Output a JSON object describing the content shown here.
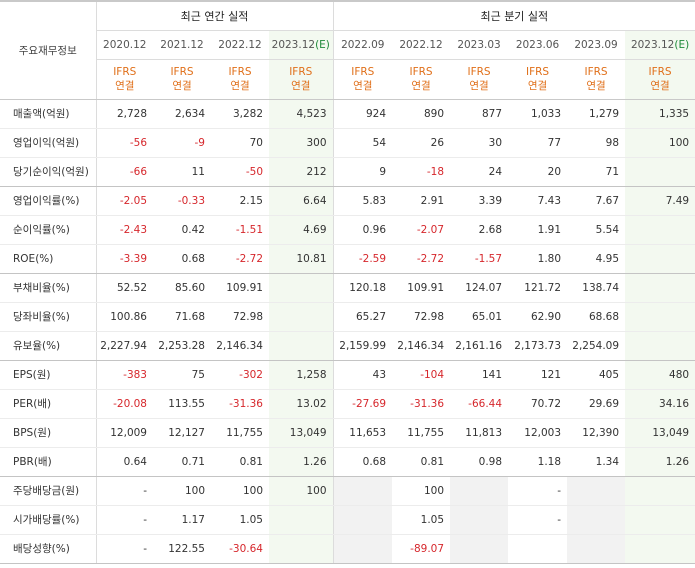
{
  "corner_label": "주요재무정보",
  "groups": [
    {
      "label": "최근 연간 실적"
    },
    {
      "label": "최근 분기 실적"
    }
  ],
  "columns": [
    {
      "period": "2020.12",
      "est": "",
      "std_top": "IFRS",
      "std_bot": "연결"
    },
    {
      "period": "2021.12",
      "est": "",
      "std_top": "IFRS",
      "std_bot": "연결"
    },
    {
      "period": "2022.12",
      "est": "",
      "std_top": "IFRS",
      "std_bot": "연결"
    },
    {
      "period": "2023.12",
      "est": "(E)",
      "std_top": "IFRS",
      "std_bot": "연결"
    },
    {
      "period": "2022.09",
      "est": "",
      "std_top": "IFRS",
      "std_bot": "연결"
    },
    {
      "period": "2022.12",
      "est": "",
      "std_top": "IFRS",
      "std_bot": "연결"
    },
    {
      "period": "2023.03",
      "est": "",
      "std_top": "IFRS",
      "std_bot": "연결"
    },
    {
      "period": "2023.06",
      "est": "",
      "std_top": "IFRS",
      "std_bot": "연결"
    },
    {
      "period": "2023.09",
      "est": "",
      "std_top": "IFRS",
      "std_bot": "연결"
    },
    {
      "period": "2023.12",
      "est": "(E)",
      "std_top": "IFRS",
      "std_bot": "연결"
    }
  ],
  "rows": [
    {
      "label": "매출액(억원)",
      "values": [
        "2,728",
        "2,634",
        "3,282",
        "4,523",
        "924",
        "890",
        "877",
        "1,033",
        "1,279",
        "1,335"
      ]
    },
    {
      "label": "영업이익(억원)",
      "values": [
        "-56",
        "-9",
        "70",
        "300",
        "54",
        "26",
        "30",
        "77",
        "98",
        "100"
      ]
    },
    {
      "label": "당기순이익(억원)",
      "values": [
        "-66",
        "11",
        "-50",
        "212",
        "9",
        "-18",
        "24",
        "20",
        "71",
        ""
      ]
    },
    {
      "label": "영업이익률(%)",
      "values": [
        "-2.05",
        "-0.33",
        "2.15",
        "6.64",
        "5.83",
        "2.91",
        "3.39",
        "7.43",
        "7.67",
        "7.49"
      ]
    },
    {
      "label": "순이익률(%)",
      "values": [
        "-2.43",
        "0.42",
        "-1.51",
        "4.69",
        "0.96",
        "-2.07",
        "2.68",
        "1.91",
        "5.54",
        ""
      ]
    },
    {
      "label": "ROE(%)",
      "values": [
        "-3.39",
        "0.68",
        "-2.72",
        "10.81",
        "-2.59",
        "-2.72",
        "-1.57",
        "1.80",
        "4.95",
        ""
      ]
    },
    {
      "label": "부채비율(%)",
      "values": [
        "52.52",
        "85.60",
        "109.91",
        "",
        "120.18",
        "109.91",
        "124.07",
        "121.72",
        "138.74",
        ""
      ]
    },
    {
      "label": "당좌비율(%)",
      "values": [
        "100.86",
        "71.68",
        "72.98",
        "",
        "65.27",
        "72.98",
        "65.01",
        "62.90",
        "68.68",
        ""
      ]
    },
    {
      "label": "유보율(%)",
      "values": [
        "2,227.94",
        "2,253.28",
        "2,146.34",
        "",
        "2,159.99",
        "2,146.34",
        "2,161.16",
        "2,173.73",
        "2,254.09",
        ""
      ]
    },
    {
      "label": "EPS(원)",
      "values": [
        "-383",
        "75",
        "-302",
        "1,258",
        "43",
        "-104",
        "141",
        "121",
        "405",
        "480"
      ]
    },
    {
      "label": "PER(배)",
      "values": [
        "-20.08",
        "113.55",
        "-31.36",
        "13.02",
        "-27.69",
        "-31.36",
        "-66.44",
        "70.72",
        "29.69",
        "34.16"
      ]
    },
    {
      "label": "BPS(원)",
      "values": [
        "12,009",
        "12,127",
        "11,755",
        "13,049",
        "11,653",
        "11,755",
        "11,813",
        "12,003",
        "12,390",
        "13,049"
      ]
    },
    {
      "label": "PBR(배)",
      "values": [
        "0.64",
        "0.71",
        "0.81",
        "1.26",
        "0.68",
        "0.81",
        "0.98",
        "1.18",
        "1.34",
        "1.26"
      ]
    },
    {
      "label": "주당배당금(원)",
      "values": [
        "-",
        "100",
        "100",
        "100",
        "",
        "100",
        "",
        "-",
        "",
        ""
      ]
    },
    {
      "label": "시가배당률(%)",
      "values": [
        "-",
        "1.17",
        "1.05",
        "",
        "",
        "1.05",
        "",
        "-",
        "",
        ""
      ]
    },
    {
      "label": "배당성향(%)",
      "values": [
        "-",
        "122.55",
        "-30.64",
        "",
        "",
        "-89.07",
        "",
        "",
        "",
        ""
      ]
    }
  ],
  "colors": {
    "negative": "#d6272c",
    "standard": "#e06f19",
    "estimate_bg": "#f3f9f0",
    "estimate_label": "#1f8a3a"
  }
}
